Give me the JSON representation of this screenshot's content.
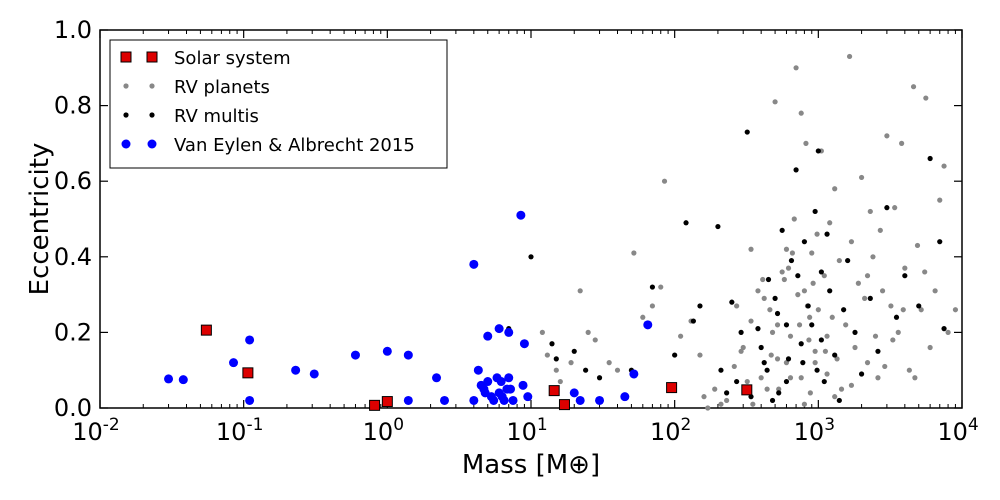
{
  "chart_data": {
    "type": "scatter",
    "title": "",
    "xlabel": "Mass [M⊕]",
    "ylabel": "Eccentricity",
    "xscale": "log",
    "xlim": [
      0.01,
      10000
    ],
    "ylim": [
      0.0,
      1.0
    ],
    "x_tick_labels": [
      {
        "base": "10",
        "exp": "-2"
      },
      {
        "base": "10",
        "exp": "-1"
      },
      {
        "base": "10",
        "exp": "0"
      },
      {
        "base": "10",
        "exp": "1"
      },
      {
        "base": "10",
        "exp": "2"
      },
      {
        "base": "10",
        "exp": "3"
      },
      {
        "base": "10",
        "exp": "4"
      }
    ],
    "y_ticks": [
      0.0,
      0.2,
      0.4,
      0.6,
      0.8,
      1.0
    ],
    "y_tick_labels": [
      "0.0",
      "0.2",
      "0.4",
      "0.6",
      "0.8",
      "1.0"
    ],
    "legend_position": "top-left",
    "series": [
      {
        "name": "Solar system",
        "marker": "square",
        "color": "#dd0000",
        "points": [
          [
            0.055,
            0.206
          ],
          [
            0.107,
            0.093
          ],
          [
            0.815,
            0.007
          ],
          [
            1.0,
            0.017
          ],
          [
            14.5,
            0.046
          ],
          [
            17.1,
            0.009
          ],
          [
            95.2,
            0.054
          ],
          [
            317.8,
            0.048
          ]
        ]
      },
      {
        "name": "RV planets",
        "marker": "circle-small",
        "color": "#888888",
        "points": [
          [
            12,
            0.2
          ],
          [
            13,
            0.14
          ],
          [
            15,
            0.1
          ],
          [
            16,
            0.07
          ],
          [
            19,
            0.12
          ],
          [
            22,
            0.31
          ],
          [
            25,
            0.2
          ],
          [
            28,
            0.18
          ],
          [
            35,
            0.12
          ],
          [
            40,
            0.1
          ],
          [
            52,
            0.41
          ],
          [
            60,
            0.24
          ],
          [
            70,
            0.27
          ],
          [
            80,
            0.32
          ],
          [
            85,
            0.6
          ],
          [
            110,
            0.19
          ],
          [
            130,
            0.23
          ],
          [
            150,
            0.14
          ],
          [
            160,
            0.03
          ],
          [
            170,
            0.0
          ],
          [
            190,
            0.05
          ],
          [
            210,
            0.01
          ],
          [
            230,
            0.02
          ],
          [
            260,
            0.11
          ],
          [
            270,
            0.27
          ],
          [
            300,
            0.16
          ],
          [
            320,
            0.07
          ],
          [
            340,
            0.23
          ],
          [
            350,
            0.01
          ],
          [
            380,
            0.31
          ],
          [
            400,
            0.08
          ],
          [
            420,
            0.29
          ],
          [
            440,
            0.05
          ],
          [
            460,
            0.26
          ],
          [
            480,
            0.2
          ],
          [
            500,
            0.81
          ],
          [
            520,
            0.13
          ],
          [
            530,
            0.05
          ],
          [
            560,
            0.36
          ],
          [
            580,
            0.34
          ],
          [
            600,
            0.12
          ],
          [
            620,
            0.37
          ],
          [
            640,
            0.08
          ],
          [
            660,
            0.41
          ],
          [
            680,
            0.5
          ],
          [
            700,
            0.9
          ],
          [
            720,
            0.3
          ],
          [
            740,
            0.22
          ],
          [
            760,
            0.78
          ],
          [
            800,
            0.01
          ],
          [
            820,
            0.7
          ],
          [
            840,
            0.27
          ],
          [
            860,
            0.18
          ],
          [
            880,
            0.04
          ],
          [
            900,
            0.41
          ],
          [
            920,
            0.33
          ],
          [
            950,
            0.15
          ],
          [
            980,
            0.46
          ],
          [
            1000,
            0.26
          ],
          [
            1050,
            0.68
          ],
          [
            1100,
            0.35
          ],
          [
            1150,
            0.09
          ],
          [
            1200,
            0.49
          ],
          [
            1250,
            0.24
          ],
          [
            1300,
            0.58
          ],
          [
            1350,
            0.13
          ],
          [
            1400,
            0.39
          ],
          [
            1450,
            0.05
          ],
          [
            1550,
            0.22
          ],
          [
            1650,
            0.93
          ],
          [
            1700,
            0.44
          ],
          [
            1800,
            0.16
          ],
          [
            1900,
            0.33
          ],
          [
            2000,
            0.61
          ],
          [
            2100,
            0.29
          ],
          [
            2200,
            0.12
          ],
          [
            2300,
            0.52
          ],
          [
            2400,
            0.4
          ],
          [
            2500,
            0.19
          ],
          [
            2600,
            0.08
          ],
          [
            2700,
            0.47
          ],
          [
            2800,
            0.31
          ],
          [
            3000,
            0.72
          ],
          [
            3200,
            0.27
          ],
          [
            3400,
            0.53
          ],
          [
            3600,
            0.2
          ],
          [
            3800,
            0.7
          ],
          [
            4000,
            0.37
          ],
          [
            4300,
            0.1
          ],
          [
            4600,
            0.85
          ],
          [
            4900,
            0.43
          ],
          [
            5200,
            0.26
          ],
          [
            5600,
            0.82
          ],
          [
            6000,
            0.16
          ],
          [
            6500,
            0.31
          ],
          [
            7000,
            0.55
          ],
          [
            7500,
            0.64
          ],
          [
            8000,
            0.2
          ],
          [
            9000,
            0.26
          ],
          [
            1120,
            0.15
          ],
          [
            870,
            0.24
          ],
          [
            760,
            0.08
          ],
          [
            640,
            0.19
          ],
          [
            520,
            0.22
          ],
          [
            410,
            0.34
          ],
          [
            340,
            0.42
          ],
          [
            290,
            0.15
          ],
          [
            1300,
            0.03
          ],
          [
            1700,
            0.06
          ],
          [
            2200,
            0.35
          ],
          [
            2900,
            0.11
          ],
          [
            3300,
            0.18
          ],
          [
            3900,
            0.26
          ],
          [
            4700,
            0.08
          ],
          [
            5500,
            0.36
          ],
          [
            950,
            0.12
          ],
          [
            1150,
            0.19
          ],
          [
            600,
            0.42
          ],
          [
            470,
            0.14
          ],
          [
            800,
            0.31
          ]
        ]
      },
      {
        "name": "RV multis",
        "marker": "circle-small",
        "color": "#000000",
        "points": [
          [
            7,
            0.21
          ],
          [
            10,
            0.4
          ],
          [
            14,
            0.17
          ],
          [
            15,
            0.13
          ],
          [
            20,
            0.15
          ],
          [
            24,
            0.1
          ],
          [
            30,
            0.08
          ],
          [
            50,
            0.1
          ],
          [
            70,
            0.32
          ],
          [
            100,
            0.14
          ],
          [
            120,
            0.49
          ],
          [
            135,
            0.23
          ],
          [
            150,
            0.27
          ],
          [
            200,
            0.48
          ],
          [
            210,
            0.1
          ],
          [
            230,
            0.04
          ],
          [
            250,
            0.28
          ],
          [
            270,
            0.07
          ],
          [
            290,
            0.2
          ],
          [
            320,
            0.73
          ],
          [
            340,
            0.03
          ],
          [
            380,
            0.21
          ],
          [
            400,
            0.16
          ],
          [
            420,
            0.12
          ],
          [
            450,
            0.34
          ],
          [
            480,
            0.02
          ],
          [
            500,
            0.29
          ],
          [
            520,
            0.25
          ],
          [
            560,
            0.47
          ],
          [
            600,
            0.07
          ],
          [
            620,
            0.13
          ],
          [
            650,
            0.39
          ],
          [
            700,
            0.63
          ],
          [
            720,
            0.35
          ],
          [
            760,
            0.17
          ],
          [
            800,
            0.44
          ],
          [
            850,
            0.27
          ],
          [
            900,
            0.22
          ],
          [
            950,
            0.52
          ],
          [
            980,
            0.1
          ],
          [
            1000,
            0.68
          ],
          [
            1050,
            0.36
          ],
          [
            1100,
            0.07
          ],
          [
            1150,
            0.46
          ],
          [
            1200,
            0.31
          ],
          [
            1300,
            0.14
          ],
          [
            1400,
            0.02
          ],
          [
            1500,
            0.26
          ],
          [
            1600,
            0.39
          ],
          [
            1800,
            0.2
          ],
          [
            2000,
            0.09
          ],
          [
            2300,
            0.29
          ],
          [
            2600,
            0.15
          ],
          [
            3000,
            0.53
          ],
          [
            3500,
            0.24
          ],
          [
            4000,
            0.35
          ],
          [
            5000,
            0.27
          ],
          [
            6000,
            0.66
          ],
          [
            7000,
            0.44
          ],
          [
            7500,
            0.21
          ],
          [
            440,
            0.1
          ],
          [
            530,
            0.04
          ],
          [
            780,
            0.12
          ],
          [
            1050,
            0.18
          ],
          [
            600,
            0.22
          ]
        ]
      },
      {
        "name": "Van Eylen & Albrecht 2015",
        "marker": "circle",
        "color": "#0000ff",
        "points": [
          [
            0.03,
            0.077
          ],
          [
            0.038,
            0.075
          ],
          [
            0.085,
            0.12
          ],
          [
            0.11,
            0.18
          ],
          [
            0.11,
            0.02
          ],
          [
            0.23,
            0.1
          ],
          [
            0.31,
            0.09
          ],
          [
            0.6,
            0.14
          ],
          [
            1.0,
            0.15
          ],
          [
            1.4,
            0.14
          ],
          [
            1.4,
            0.02
          ],
          [
            2.2,
            0.08
          ],
          [
            2.5,
            0.02
          ],
          [
            4.0,
            0.38
          ],
          [
            4.0,
            0.02
          ],
          [
            4.3,
            0.1
          ],
          [
            4.5,
            0.06
          ],
          [
            4.7,
            0.05
          ],
          [
            5.0,
            0.19
          ],
          [
            5.0,
            0.07
          ],
          [
            5.3,
            0.03
          ],
          [
            5.5,
            0.02
          ],
          [
            6.0,
            0.21
          ],
          [
            6.2,
            0.07
          ],
          [
            6.3,
            0.03
          ],
          [
            6.5,
            0.02
          ],
          [
            7.0,
            0.2
          ],
          [
            7.0,
            0.08
          ],
          [
            7.2,
            0.05
          ],
          [
            7.5,
            0.02
          ],
          [
            8.5,
            0.51
          ],
          [
            8.8,
            0.06
          ],
          [
            9.0,
            0.17
          ],
          [
            9.5,
            0.03
          ],
          [
            6.8,
            0.05
          ],
          [
            5.8,
            0.08
          ],
          [
            4.8,
            0.04
          ],
          [
            6.0,
            0.04
          ],
          [
            20,
            0.04
          ],
          [
            22,
            0.02
          ],
          [
            30,
            0.02
          ],
          [
            45,
            0.03
          ],
          [
            52,
            0.09
          ],
          [
            65,
            0.22
          ]
        ]
      }
    ]
  }
}
